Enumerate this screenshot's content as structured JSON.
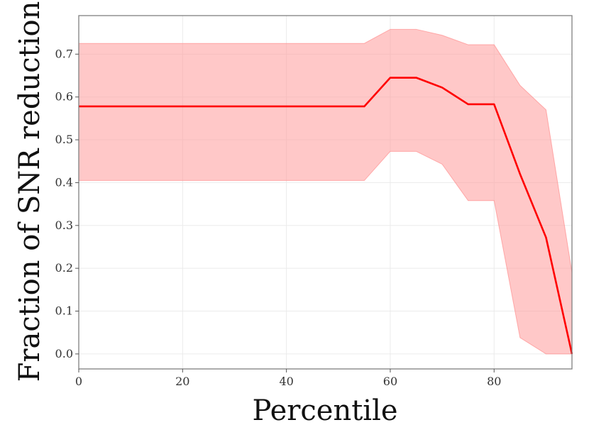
{
  "chart_data": {
    "type": "line",
    "xlabel": "Percentile",
    "ylabel": "Fraction of SNR reduction",
    "xlim": [
      0,
      95
    ],
    "ylim": [
      -0.035,
      0.79
    ],
    "x_ticks": [
      0,
      20,
      40,
      60,
      80
    ],
    "y_ticks": [
      0.0,
      0.1,
      0.2,
      0.3,
      0.4,
      0.5,
      0.6,
      0.7
    ],
    "x_tick_labels": [
      "0",
      "20",
      "40",
      "60",
      "80"
    ],
    "y_tick_labels": [
      "0.0",
      "0.1",
      "0.2",
      "0.3",
      "0.4",
      "0.5",
      "0.6",
      "0.7"
    ],
    "grid": true,
    "legend": "none",
    "series": [
      {
        "x": [
          0,
          5,
          10,
          15,
          20,
          25,
          30,
          35,
          40,
          45,
          50,
          55,
          60,
          65,
          70,
          75,
          80,
          85,
          90,
          95
        ],
        "values": [
          0.578,
          0.578,
          0.578,
          0.578,
          0.578,
          0.578,
          0.578,
          0.578,
          0.578,
          0.578,
          0.578,
          0.578,
          0.645,
          0.645,
          0.622,
          0.583,
          0.583,
          0.42,
          0.272,
          0.0
        ],
        "upper": [
          0.725,
          0.725,
          0.725,
          0.725,
          0.725,
          0.725,
          0.725,
          0.725,
          0.725,
          0.725,
          0.725,
          0.725,
          0.758,
          0.758,
          0.744,
          0.722,
          0.722,
          0.627,
          0.57,
          0.19
        ],
        "lower": [
          0.405,
          0.405,
          0.405,
          0.405,
          0.405,
          0.405,
          0.405,
          0.405,
          0.405,
          0.405,
          0.405,
          0.405,
          0.473,
          0.473,
          0.443,
          0.358,
          0.358,
          0.038,
          0.0,
          0.0
        ]
      }
    ]
  },
  "colors": {
    "line": "#ff0000",
    "band_fill": "#ff9a9a",
    "band_edge": "#ff8080",
    "axis_frame": "#7f7f7f",
    "grid": "#ebebeb"
  }
}
